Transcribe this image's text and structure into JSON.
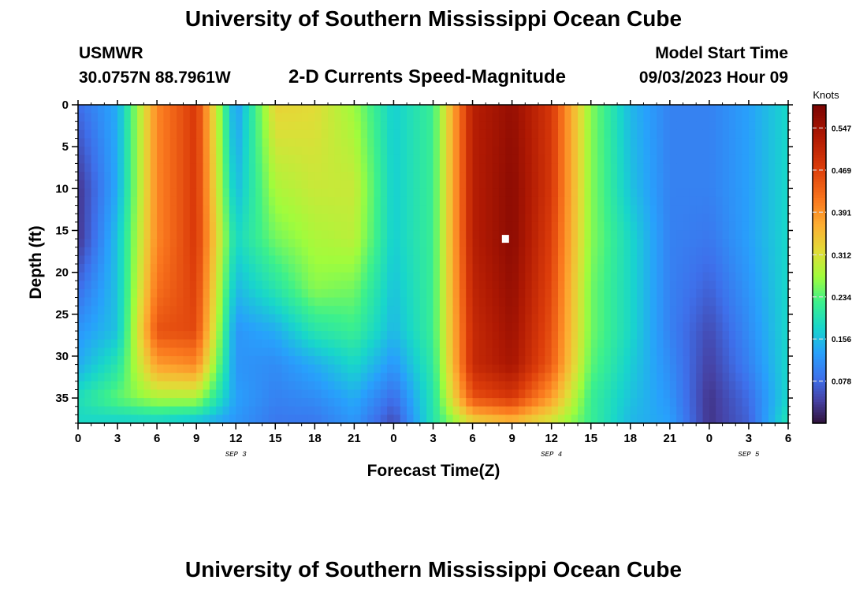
{
  "header": {
    "title": "University of Southern Mississippi Ocean Cube",
    "station": "USMWR",
    "coords": "30.0757N  88.7961W",
    "subtitle": "2-D Currents Speed-Magnitude",
    "model_start_label": "Model Start Time",
    "model_start_value": "09/03/2023 Hour 09"
  },
  "footer": {
    "title": "University of Southern Mississippi Ocean Cube"
  },
  "chart_data": {
    "type": "heatmap",
    "title": "2-D Currents Speed-Magnitude",
    "xlabel": "Forecast Time(Z)",
    "ylabel": "Depth (ft)",
    "x_tick_labels": [
      "0",
      "3",
      "6",
      "9",
      "12",
      "15",
      "18",
      "21",
      "0",
      "3",
      "6",
      "9",
      "12",
      "15",
      "18",
      "21",
      "0",
      "3",
      "6"
    ],
    "x_range_hours": [
      0,
      54
    ],
    "day_labels": [
      {
        "label": "SEP 3",
        "hour": 12
      },
      {
        "label": "SEP 4",
        "hour": 36
      },
      {
        "label": "SEP 5",
        "hour": 51
      }
    ],
    "y_tick_labels": [
      "0",
      "5",
      "10",
      "15",
      "20",
      "25",
      "30",
      "35"
    ],
    "y_range_ft": [
      0,
      38
    ],
    "colorbar": {
      "label": "Knots",
      "ticks": [
        "0.547",
        "0.469",
        "0.391",
        "0.312",
        "0.234",
        "0.156",
        "0.078"
      ],
      "range": [
        0.0,
        0.59
      ]
    },
    "x_hours": [
      0,
      3,
      6,
      9,
      12,
      15,
      18,
      21,
      24,
      27,
      30,
      33,
      36,
      39,
      42,
      45,
      48,
      51,
      54
    ],
    "y_depths_ft": [
      0,
      10,
      16,
      22,
      27,
      31,
      35,
      38
    ],
    "values_knots": [
      [
        0.08,
        0.14,
        0.4,
        0.48,
        0.12,
        0.33,
        0.32,
        0.27,
        0.17,
        0.22,
        0.52,
        0.56,
        0.48,
        0.26,
        0.15,
        0.1,
        0.1,
        0.13,
        0.18
      ],
      [
        0.03,
        0.14,
        0.4,
        0.48,
        0.15,
        0.28,
        0.3,
        0.3,
        0.17,
        0.22,
        0.52,
        0.57,
        0.48,
        0.26,
        0.16,
        0.1,
        0.1,
        0.13,
        0.18
      ],
      [
        0.03,
        0.16,
        0.4,
        0.48,
        0.18,
        0.25,
        0.28,
        0.29,
        0.17,
        0.22,
        0.52,
        0.57,
        0.47,
        0.26,
        0.18,
        0.1,
        0.09,
        0.13,
        0.18
      ],
      [
        0.08,
        0.16,
        0.42,
        0.47,
        0.15,
        0.2,
        0.26,
        0.25,
        0.16,
        0.22,
        0.51,
        0.56,
        0.46,
        0.25,
        0.18,
        0.1,
        0.07,
        0.12,
        0.18
      ],
      [
        0.12,
        0.16,
        0.45,
        0.46,
        0.12,
        0.14,
        0.2,
        0.22,
        0.15,
        0.22,
        0.5,
        0.55,
        0.45,
        0.25,
        0.18,
        0.1,
        0.05,
        0.11,
        0.18
      ],
      [
        0.14,
        0.2,
        0.38,
        0.4,
        0.12,
        0.11,
        0.14,
        0.18,
        0.12,
        0.21,
        0.5,
        0.54,
        0.44,
        0.24,
        0.17,
        0.11,
        0.04,
        0.1,
        0.18
      ],
      [
        0.19,
        0.24,
        0.28,
        0.28,
        0.13,
        0.1,
        0.11,
        0.14,
        0.08,
        0.2,
        0.45,
        0.48,
        0.38,
        0.22,
        0.16,
        0.12,
        0.03,
        0.08,
        0.18
      ],
      [
        0.18,
        0.17,
        0.17,
        0.15,
        0.12,
        0.09,
        0.09,
        0.12,
        0.05,
        0.2,
        0.32,
        0.35,
        0.3,
        0.22,
        0.15,
        0.13,
        0.03,
        0.07,
        0.2
      ]
    ],
    "marker": {
      "hour": 32.5,
      "depth_ft": 16
    }
  }
}
